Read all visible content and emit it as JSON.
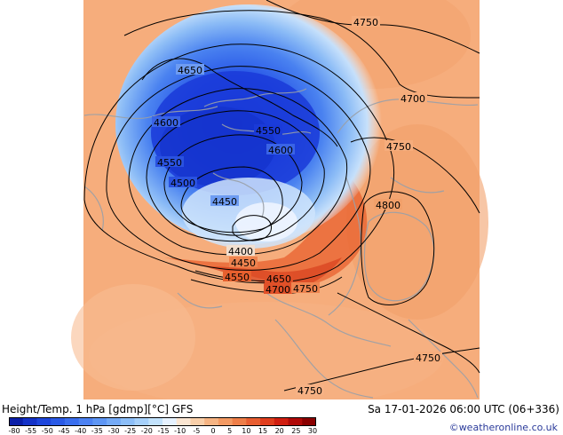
{
  "map": {
    "contour_labels": [
      {
        "id": "lbl-4750-top",
        "text": "4750"
      },
      {
        "id": "lbl-4650",
        "text": "4650"
      },
      {
        "id": "lbl-4700-right",
        "text": "4700"
      },
      {
        "id": "lbl-4600-left",
        "text": "4600"
      },
      {
        "id": "lbl-4550-center",
        "text": "4550"
      },
      {
        "id": "lbl-4600-center",
        "text": "4600"
      },
      {
        "id": "lbl-4750-mid",
        "text": "4750"
      },
      {
        "id": "lbl-4550-left",
        "text": "4550"
      },
      {
        "id": "lbl-4500",
        "text": "4500"
      },
      {
        "id": "lbl-4450-upper",
        "text": "4450"
      },
      {
        "id": "lbl-4800",
        "text": "4800"
      },
      {
        "id": "lbl-4400",
        "text": "4400"
      },
      {
        "id": "lbl-4450-lower",
        "text": "4450"
      },
      {
        "id": "lbl-4550-lower",
        "text": "4550"
      },
      {
        "id": "lbl-4650-lower",
        "text": "4650"
      },
      {
        "id": "lbl-4700-lower",
        "text": "4700"
      },
      {
        "id": "lbl-4750-lower",
        "text": "4750"
      },
      {
        "id": "lbl-4750-se",
        "text": "4750"
      },
      {
        "id": "lbl-4750-bottom",
        "text": "4750"
      }
    ]
  },
  "footer": {
    "title": "Height/Temp. 1 hPa [gdmp][°C] GFS",
    "datetime": "Sa 17-01-2026 06:00 UTC (06+336)",
    "credit": "©weatheronline.co.uk"
  },
  "colorbar": {
    "colors": [
      "#0a1ea8",
      "#1432c8",
      "#1e46dc",
      "#2a5ae6",
      "#3a6eee",
      "#4c82f2",
      "#5e96f4",
      "#74aaf6",
      "#8cbef8",
      "#a6d0fa",
      "#c2e2fc",
      "#e6f2ff",
      "#fbe6d2",
      "#f9cfa9",
      "#f6b483",
      "#f39a63",
      "#ee7e48",
      "#e85e31",
      "#e03e1e",
      "#d01e10",
      "#b00a08",
      "#8a0000"
    ],
    "tick_labels": [
      "-80",
      "-55",
      "-50",
      "-45",
      "-40",
      "-35",
      "-30",
      "-25",
      "-20",
      "-15",
      "-10",
      "-5",
      "0",
      "5",
      "10",
      "15",
      "20",
      "25",
      "30"
    ]
  }
}
